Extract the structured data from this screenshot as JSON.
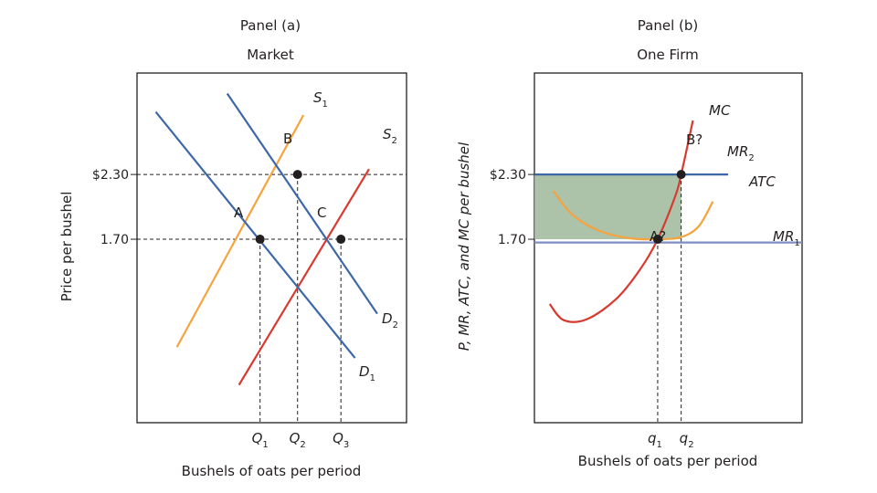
{
  "chart_data": [
    {
      "type": "line",
      "panel_title": "Panel (a)",
      "subtitle": "Market",
      "xlabel": "Bushels of oats per period",
      "ylabel": "Price per bushel",
      "ylim": [
        0,
        3.24
      ],
      "y_ticks": [
        {
          "value": 2.3,
          "label": "$2.30"
        },
        {
          "value": 1.7,
          "label": "1.70"
        }
      ],
      "x_ticks": [
        {
          "id": "q1",
          "value": 1.05,
          "base": "Q",
          "sub": "1"
        },
        {
          "id": "q2",
          "value": 1.37,
          "base": "Q",
          "sub": "2"
        },
        {
          "id": "q3",
          "value": 1.74,
          "base": "Q",
          "sub": "3"
        }
      ],
      "series": [
        {
          "base": "S",
          "sub": "1",
          "color": "#f7a33d",
          "points": [
            [
              0.34,
              0.7
            ],
            [
              1.42,
              2.85
            ]
          ]
        },
        {
          "base": "S",
          "sub": "2",
          "color": "#d93a2f",
          "points": [
            [
              0.87,
              0.35
            ],
            [
              1.98,
              2.35
            ]
          ]
        },
        {
          "base": "D",
          "sub": "1",
          "color": "#3d68a8",
          "points": [
            [
              0.16,
              2.88
            ],
            [
              1.86,
              0.6
            ]
          ]
        },
        {
          "base": "D",
          "sub": "2",
          "color": "#3d68a8",
          "points": [
            [
              0.77,
              3.05
            ],
            [
              2.05,
              1.01
            ]
          ]
        }
      ],
      "points": [
        {
          "label": "A",
          "x": 1.05,
          "y": 1.7
        },
        {
          "label": "B",
          "x": 1.37,
          "y": 2.3
        },
        {
          "label": "C",
          "x": 1.74,
          "y": 1.7
        }
      ]
    },
    {
      "type": "line",
      "panel_title": "Panel (b)",
      "subtitle": "One Firm",
      "xlabel": "Bushels of oats per period",
      "ylabel": "P, MR, ATC, and MC per bushel",
      "ylim": [
        0,
        3.24
      ],
      "y_ticks": [
        {
          "value": 2.3,
          "label": "$2.30"
        },
        {
          "value": 1.7,
          "label": "1.70"
        }
      ],
      "x_ticks": [
        {
          "id": "q1",
          "value": 1.05,
          "base": "q",
          "sub": "1"
        },
        {
          "id": "q2",
          "value": 1.25,
          "base": "q",
          "sub": "2"
        }
      ],
      "series": [
        {
          "base": "MC",
          "sub": "",
          "color": "#d93a2f",
          "points": [
            [
              0.13,
              1.1
            ],
            [
              0.25,
              0.95
            ],
            [
              0.45,
              0.96
            ],
            [
              0.7,
              1.15
            ],
            [
              0.9,
              1.42
            ],
            [
              1.05,
              1.7
            ],
            [
              1.2,
              2.1
            ],
            [
              1.25,
              2.3
            ],
            [
              1.35,
              2.8
            ]
          ]
        },
        {
          "base": "ATC",
          "sub": "",
          "color": "#f7a33d",
          "points": [
            [
              0.16,
              2.15
            ],
            [
              0.32,
              1.93
            ],
            [
              0.55,
              1.78
            ],
            [
              0.8,
              1.71
            ],
            [
              1.05,
              1.7
            ],
            [
              1.25,
              1.72
            ],
            [
              1.4,
              1.82
            ],
            [
              1.52,
              2.05
            ]
          ]
        },
        {
          "base": "MR",
          "sub": "2",
          "color": "#3d68a8",
          "points": [
            [
              0.0,
              2.3
            ],
            [
              1.65,
              2.3
            ]
          ]
        },
        {
          "base": "MR",
          "sub": "1",
          "color": "#7d8ec4",
          "points": [
            [
              0.0,
              1.67
            ],
            [
              2.28,
              1.67
            ]
          ]
        }
      ],
      "points": [
        {
          "label": "A?",
          "x": 1.05,
          "y": 1.7
        },
        {
          "label": "B?",
          "x": 1.25,
          "y": 2.3
        }
      ],
      "shaded_region": {
        "x": [
          0.0,
          1.25
        ],
        "y": [
          1.7,
          2.3
        ],
        "color": "#9db89a"
      }
    }
  ]
}
